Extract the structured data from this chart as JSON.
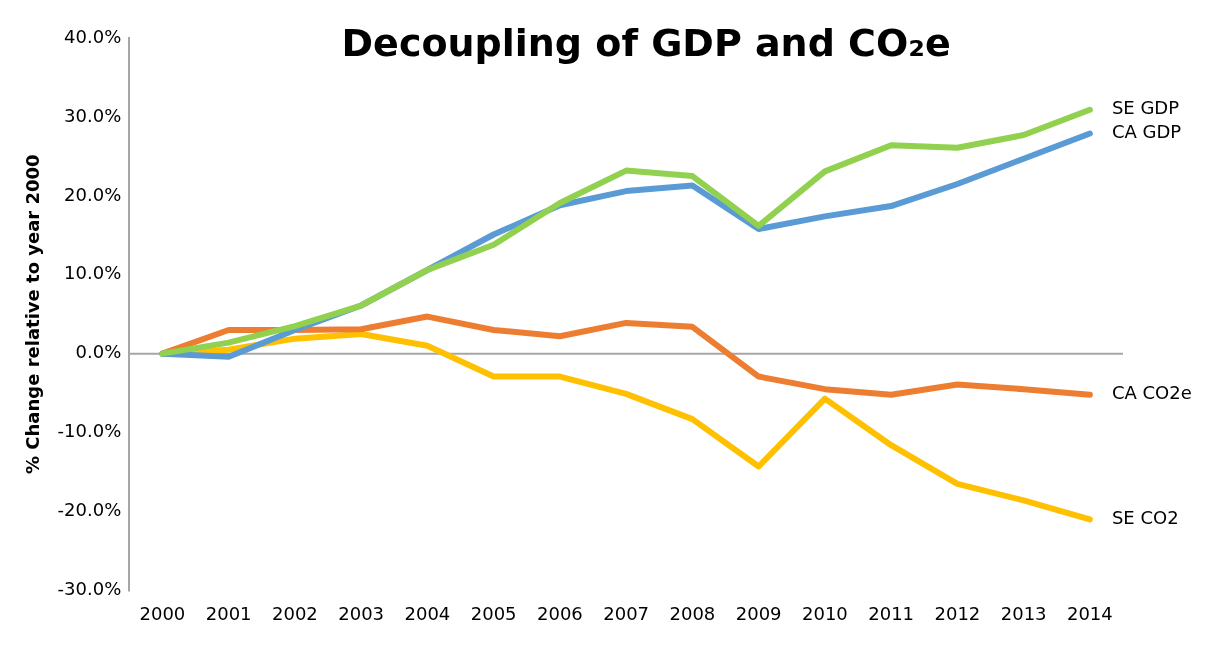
{
  "chart_data": {
    "type": "line",
    "title": "Decoupling of GDP and CO₂e",
    "ylabel": "% Change relative to year 2000",
    "categories": [
      "2000",
      "2001",
      "2002",
      "2003",
      "2004",
      "2005",
      "2006",
      "2007",
      "2008",
      "2009",
      "2010",
      "2011",
      "2012",
      "2013",
      "2014"
    ],
    "series": [
      {
        "name": "SE GDP",
        "color": "#92d050",
        "values": [
          0,
          1.4,
          3.5,
          6.1,
          10.6,
          13.8,
          19.1,
          23.2,
          22.5,
          16.2,
          23.1,
          26.4,
          26.1,
          27.7,
          30.9
        ]
      },
      {
        "name": "CA GDP",
        "color": "#5b9bd5",
        "values": [
          0,
          -0.4,
          3.0,
          6.1,
          10.6,
          15.1,
          18.8,
          20.6,
          21.3,
          15.8,
          17.4,
          18.7,
          21.5,
          24.7,
          27.9
        ]
      },
      {
        "name": "CA CO2e",
        "color": "#ed7d31",
        "values": [
          0,
          3.0,
          3.0,
          3.1,
          4.7,
          3.0,
          2.2,
          3.9,
          3.4,
          -2.9,
          -4.5,
          -5.2,
          -3.9,
          -4.5,
          -5.2
        ]
      },
      {
        "name": "SE CO2",
        "color": "#ffc000",
        "values": [
          0,
          0.5,
          1.9,
          2.5,
          1.0,
          -2.9,
          -2.9,
          -5.1,
          -8.3,
          -14.3,
          -5.7,
          -11.6,
          -16.5,
          -18.6,
          -21.0
        ]
      }
    ],
    "ylim": [
      -30,
      40
    ],
    "yticks": [
      {
        "value": -30,
        "label": "-30.0%"
      },
      {
        "value": -20,
        "label": "-20.0%"
      },
      {
        "value": -10,
        "label": "-10.0%"
      },
      {
        "value": 0,
        "label": "0.0%"
      },
      {
        "value": 10,
        "label": "10.0%"
      },
      {
        "value": 20,
        "label": "20.0%"
      },
      {
        "value": 30,
        "label": "30.0%"
      },
      {
        "value": 40,
        "label": "40.0%"
      }
    ],
    "ref_lines": [
      {
        "axis": "y",
        "value": 0,
        "color": "#a6a6a6"
      }
    ],
    "grid": false,
    "legend": false,
    "marker": "none",
    "line_style": "solid"
  }
}
